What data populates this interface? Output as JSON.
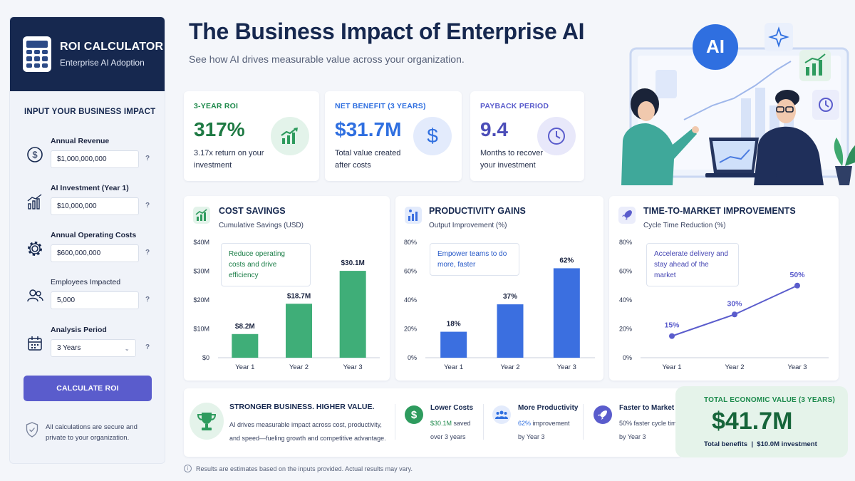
{
  "sidebar": {
    "title": "ROI CALCULATOR",
    "subtitle": "Enterprise AI Adoption",
    "section_title": "INPUT YOUR BUSINESS IMPACT",
    "fields": [
      {
        "label": "Annual Revenue",
        "value": "$1,000,000,000",
        "icon": "dollar-icon"
      },
      {
        "label": "AI Investment (Year 1)",
        "value": "$10,000,000",
        "icon": "growth-chart-icon"
      },
      {
        "label": "Annual Operating Costs",
        "value": "$600,000,000",
        "icon": "gear-icon"
      },
      {
        "label": "Employees Impacted",
        "value": "5,000",
        "icon": "users-icon"
      },
      {
        "label": "Analysis Period",
        "value": "3 Years",
        "icon": "calendar-icon"
      }
    ],
    "help": "?",
    "calculate_label": "CALCULATE ROI",
    "secure_text": "All calculations are secure and private to your organization."
  },
  "header": {
    "title": "The Business Impact of Enterprise AI",
    "subtitle": "See how AI drives measurable value across your organization."
  },
  "kpis": [
    {
      "label": "3-YEAR ROI",
      "value": "317%",
      "desc": "3.17x return on your investment",
      "color": "#1f8a4c",
      "icon": "growth-chart-icon"
    },
    {
      "label": "NET BENEFIT (3 YEARS)",
      "value": "$31.7M",
      "desc": "Total value created after costs",
      "color": "#2f6fe0",
      "icon": "dollar-icon"
    },
    {
      "label": "PAYBACK PERIOD",
      "value": "9.4",
      "desc": "Months to recover your investment",
      "color": "#5a5ccc",
      "icon": "clock-icon"
    }
  ],
  "illustration": {
    "ai_badge": "AI"
  },
  "charts": [
    {
      "title": "COST SAVINGS",
      "subtitle": "Cumulative Savings (USD)",
      "callout": "Reduce operating costs and drive efficiency",
      "color": "#3fae78"
    },
    {
      "title": "PRODUCTIVITY GAINS",
      "subtitle": "Output Improvement (%)",
      "callout": "Empower teams to do more, faster",
      "color": "#3b6fe0"
    },
    {
      "title": "TIME-TO-MARKET IMPROVEMENTS",
      "subtitle": "Cycle Time Reduction (%)",
      "callout": "Accelerate delivery and stay ahead of the market",
      "color": "#5a5ccc"
    }
  ],
  "chart_data": [
    {
      "type": "bar",
      "categories": [
        "Year 1",
        "Year 2",
        "Year 3"
      ],
      "values": [
        8.2,
        18.7,
        30.1
      ],
      "labels": [
        "$8.2M",
        "$18.7M",
        "$30.1M"
      ],
      "yticks": [
        "$0",
        "$10M",
        "$20M",
        "$30M",
        "$40M"
      ],
      "ylim": [
        0,
        40
      ],
      "grid": false
    },
    {
      "type": "bar",
      "categories": [
        "Year 1",
        "Year 2",
        "Year 3"
      ],
      "values": [
        18,
        37,
        62
      ],
      "labels": [
        "18%",
        "37%",
        "62%"
      ],
      "yticks": [
        "0%",
        "20%",
        "40%",
        "60%",
        "80%"
      ],
      "ylim": [
        0,
        80
      ],
      "grid": false
    },
    {
      "type": "line",
      "categories": [
        "Year 1",
        "Year 2",
        "Year 3"
      ],
      "values": [
        15,
        30,
        50
      ],
      "labels": [
        "15%",
        "30%",
        "50%"
      ],
      "yticks": [
        "0%",
        "20%",
        "40%",
        "60%",
        "80%"
      ],
      "ylim": [
        0,
        80
      ],
      "grid": false
    }
  ],
  "strip": {
    "heading": "STRONGER BUSINESS. HIGHER VALUE.",
    "text": "AI drives measurable impact across cost, productivity, and speed—fueling growth and competitive advantage.",
    "benefits": [
      {
        "title": "Lower Costs",
        "highlight": "$30.1M",
        "line1_rest": " saved",
        "line2": "over 3 years",
        "color": "#2e9b5e",
        "icon": "dollar-icon"
      },
      {
        "title": "More Productivity",
        "highlight": "62%",
        "line1_rest": " improvement",
        "line2": "by Year 3",
        "color": "#2f6fe0",
        "icon": "team-icon"
      },
      {
        "title": "Faster to Market",
        "highlight": "50%",
        "line1_rest": " faster cycle time",
        "line2": "by Year 3",
        "color": "#5a5ccc",
        "icon": "rocket-icon"
      }
    ]
  },
  "total": {
    "label": "TOTAL ECONOMIC VALUE (3 YEARS)",
    "value": "$41.7M",
    "benefits_label": "Total benefits",
    "separator": "|",
    "investment_label": "$10.0M investment"
  },
  "disclaimer": "Results are estimates based on the inputs provided. Actual results may vary."
}
